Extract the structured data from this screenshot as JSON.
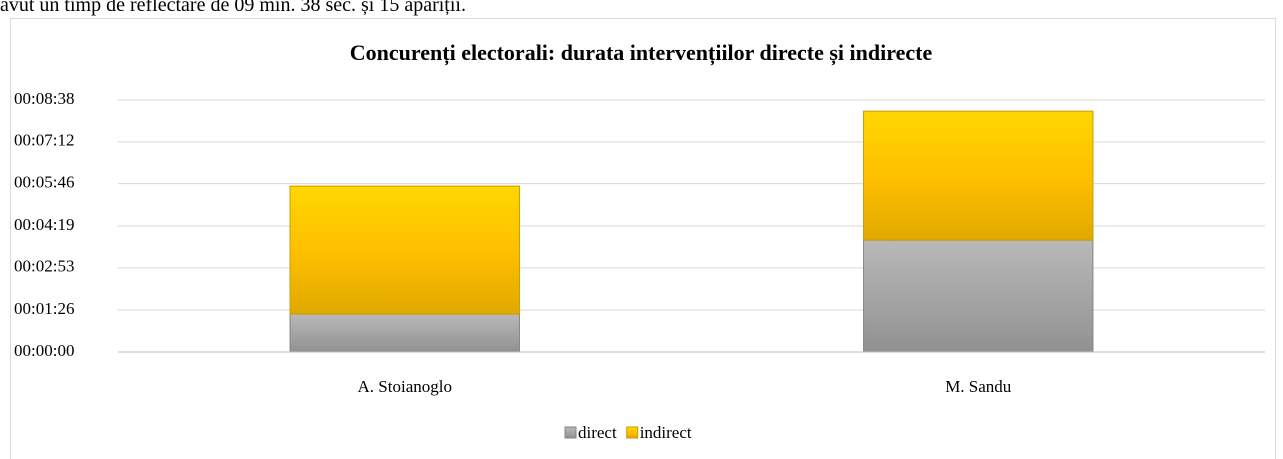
{
  "document": {
    "lead_text": "avut un timp de reflectare de 09 min. 38 sec. și 15 apariții."
  },
  "chart_data": {
    "type": "stacked_bar",
    "title": "Concurenți electorali: durata intervențiilor directe și indirecte",
    "categories": [
      "A. Stoianoglo",
      "M. Sandu"
    ],
    "series": [
      {
        "name": "direct",
        "color": "#a5a5a5",
        "values": [
          78,
          230
        ]
      },
      {
        "name": "indirect",
        "color": "#ffc000",
        "values": [
          263,
          265
        ]
      }
    ],
    "ylim": [
      0,
      518
    ],
    "yticks": [
      {
        "value": 0,
        "label": "00:00:00"
      },
      {
        "value": 86,
        "label": "00:01:26"
      },
      {
        "value": 173,
        "label": "00:02:53"
      },
      {
        "value": 259,
        "label": "00:04:19"
      },
      {
        "value": 346,
        "label": "00:05:46"
      },
      {
        "value": 432,
        "label": "00:07:12"
      },
      {
        "value": 518,
        "label": "00:08:38"
      }
    ],
    "grid": true,
    "legend": "bottom"
  }
}
